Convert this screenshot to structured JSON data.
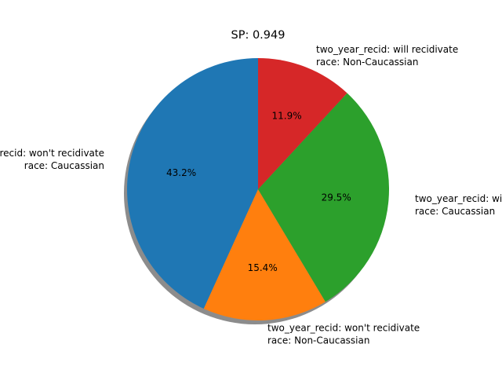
{
  "chart_data": {
    "type": "pie",
    "title": "SP: 0.949",
    "slices": [
      {
        "label_line1": "two_year_recid: won't recidivate",
        "label_line2": "race: Caucassian",
        "value": 43.2,
        "pct_label": "43.2%",
        "color": "#1f77b4"
      },
      {
        "label_line1": "two_year_recid: won't recidivate",
        "label_line2": "race: Non-Caucassian",
        "value": 15.4,
        "pct_label": "15.4%",
        "color": "#ff7f0e"
      },
      {
        "label_line1": "two_year_recid: will recidivate",
        "label_line2": "race: Caucassian",
        "value": 29.5,
        "pct_label": "29.5%",
        "color": "#2ca02c"
      },
      {
        "label_line1": "two_year_recid: will recidivate",
        "label_line2": "race: Non-Caucassian",
        "value": 11.9,
        "pct_label": "11.9%",
        "color": "#d62728"
      }
    ],
    "start_angle_deg": 90,
    "direction": "counterclockwise",
    "shadow": true
  }
}
